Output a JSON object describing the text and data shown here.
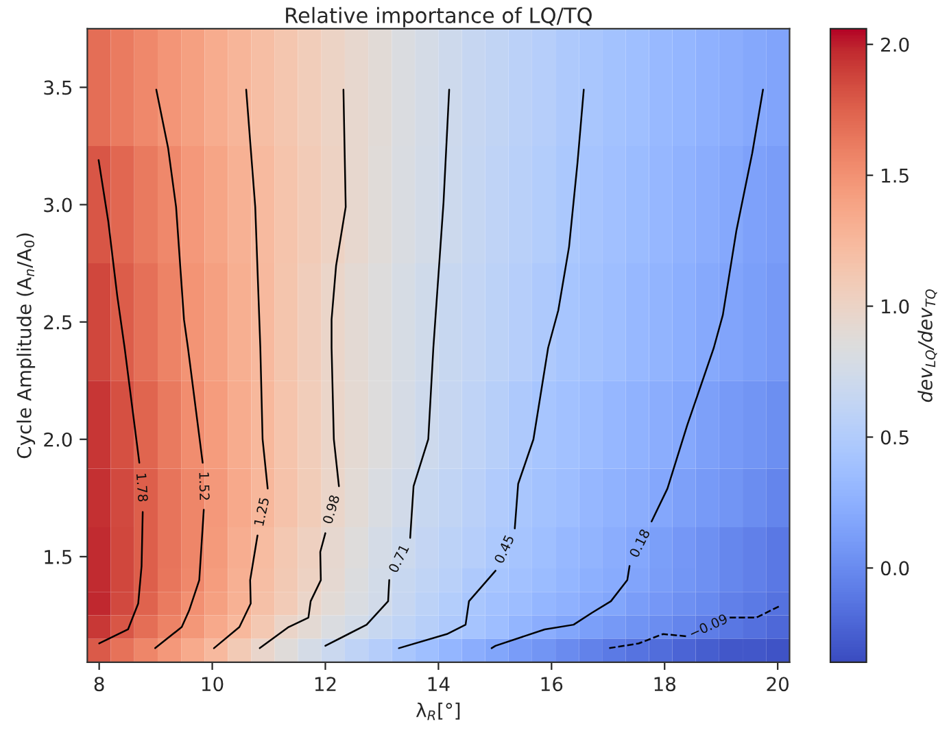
{
  "chart_data": {
    "type": "heatmap",
    "title": "Relative importance of LQ/TQ",
    "xlabel": "λ$_{R}$[°]",
    "ylabel": "Cycle Amplitude (A$_{n}$/A$_{0}$)",
    "clabel": "dev$_{LQ}$/dev$_{TQ}$",
    "x": [
      8.0,
      8.41,
      8.83,
      9.24,
      9.66,
      10.07,
      10.48,
      10.9,
      11.31,
      11.72,
      12.14,
      12.55,
      12.97,
      13.38,
      13.79,
      14.21,
      14.62,
      15.03,
      15.45,
      15.86,
      16.28,
      16.69,
      17.1,
      17.52,
      17.93,
      18.34,
      18.76,
      19.17,
      19.59,
      20.0
    ],
    "y": [
      3.5,
      3.0,
      2.5,
      2.0,
      1.75,
      1.5,
      1.4,
      1.3,
      1.2,
      1.1
    ],
    "cells": [
      [
        1.69,
        1.62,
        1.55,
        1.48,
        1.41,
        1.34,
        1.27,
        1.2,
        1.14,
        1.07,
        1.01,
        0.95,
        0.89,
        0.83,
        0.77,
        0.71,
        0.66,
        0.62,
        0.57,
        0.53,
        0.48,
        0.44,
        0.4,
        0.37,
        0.33,
        0.3,
        0.26,
        0.23,
        0.19,
        0.16
      ],
      [
        1.8,
        1.72,
        1.63,
        1.55,
        1.46,
        1.38,
        1.3,
        1.23,
        1.16,
        1.09,
        1.02,
        0.95,
        0.88,
        0.82,
        0.76,
        0.7,
        0.65,
        0.6,
        0.55,
        0.51,
        0.46,
        0.42,
        0.38,
        0.34,
        0.31,
        0.27,
        0.23,
        0.19,
        0.15,
        0.12
      ],
      [
        1.87,
        1.77,
        1.68,
        1.58,
        1.49,
        1.41,
        1.32,
        1.24,
        1.15,
        1.06,
        0.98,
        0.91,
        0.85,
        0.79,
        0.73,
        0.67,
        0.63,
        0.58,
        0.53,
        0.48,
        0.43,
        0.4,
        0.36,
        0.32,
        0.28,
        0.24,
        0.2,
        0.16,
        0.13,
        0.09
      ],
      [
        1.93,
        1.83,
        1.73,
        1.63,
        1.53,
        1.44,
        1.34,
        1.25,
        1.16,
        1.07,
        0.98,
        0.92,
        0.85,
        0.78,
        0.71,
        0.66,
        0.6,
        0.54,
        0.48,
        0.43,
        0.39,
        0.35,
        0.31,
        0.27,
        0.23,
        0.19,
        0.14,
        0.1,
        0.06,
        0.02
      ],
      [
        1.95,
        1.86,
        1.76,
        1.66,
        1.56,
        1.46,
        1.36,
        1.26,
        1.17,
        1.08,
        0.98,
        0.9,
        0.82,
        0.74,
        0.67,
        0.62,
        0.56,
        0.5,
        0.44,
        0.4,
        0.36,
        0.31,
        0.27,
        0.23,
        0.18,
        0.14,
        0.1,
        0.06,
        0.01,
        -0.03
      ],
      [
        1.97,
        1.87,
        1.76,
        1.66,
        1.56,
        1.45,
        1.33,
        1.22,
        1.12,
        1.03,
        0.94,
        0.86,
        0.77,
        0.7,
        0.64,
        0.58,
        0.53,
        0.47,
        0.42,
        0.37,
        0.32,
        0.28,
        0.23,
        0.18,
        0.13,
        0.08,
        0.03,
        -0.02,
        -0.06,
        -0.11
      ],
      [
        1.97,
        1.87,
        1.76,
        1.65,
        1.55,
        1.43,
        1.31,
        1.2,
        1.11,
        1.02,
        0.93,
        0.84,
        0.75,
        0.67,
        0.61,
        0.55,
        0.48,
        0.43,
        0.39,
        0.34,
        0.3,
        0.25,
        0.21,
        0.16,
        0.12,
        0.07,
        0.03,
        -0.02,
        -0.06,
        -0.11
      ],
      [
        1.98,
        1.86,
        1.74,
        1.62,
        1.51,
        1.41,
        1.3,
        1.19,
        1.09,
        0.98,
        0.9,
        0.82,
        0.74,
        0.66,
        0.58,
        0.51,
        0.44,
        0.39,
        0.35,
        0.3,
        0.26,
        0.21,
        0.17,
        0.12,
        0.08,
        0.03,
        -0.01,
        -0.06,
        -0.1,
        -0.15
      ],
      [
        1.92,
        1.8,
        1.69,
        1.58,
        1.47,
        1.36,
        1.25,
        1.12,
        0.99,
        0.91,
        0.83,
        0.75,
        0.67,
        0.61,
        0.54,
        0.48,
        0.42,
        0.36,
        0.29,
        0.23,
        0.17,
        0.13,
        0.09,
        0.05,
        0.01,
        -0.03,
        -0.08,
        -0.12,
        -0.16,
        -0.2
      ],
      [
        1.78,
        1.67,
        1.56,
        1.46,
        1.35,
        1.24,
        1.1,
        0.97,
        0.87,
        0.77,
        0.68,
        0.6,
        0.52,
        0.44,
        0.37,
        0.3,
        0.23,
        0.17,
        0.11,
        0.06,
        0.0,
        -0.05,
        -0.1,
        -0.14,
        -0.18,
        -0.22,
        -0.26,
        -0.3,
        -0.3,
        -0.32
      ]
    ],
    "clim": [
      -0.36,
      2.06
    ],
    "cticks": [
      {
        "value": 0.0,
        "label": "0.0"
      },
      {
        "value": 0.5,
        "label": "0.5"
      },
      {
        "value": 1.0,
        "label": "1.0"
      },
      {
        "value": 1.5,
        "label": "1.5"
      },
      {
        "value": 2.0,
        "label": "2.0"
      }
    ],
    "xlim": [
      7.79,
      20.21
    ],
    "ylim": [
      1.05,
      3.75
    ],
    "xticks": [
      8,
      10,
      12,
      14,
      16,
      18,
      20
    ],
    "yticks": [
      {
        "value": 1.5,
        "label": "1.5"
      },
      {
        "value": 2.0,
        "label": "2.0"
      },
      {
        "value": 2.5,
        "label": "2.5"
      },
      {
        "value": 3.0,
        "label": "3.0"
      },
      {
        "value": 3.5,
        "label": "3.5"
      }
    ],
    "grid": false,
    "series": [
      {
        "type": "line",
        "color": "#000000",
        "line_style": "solid",
        "x": [
          7.99,
          8.16,
          8.32,
          8.45,
          8.71,
          null,
          8.77,
          8.75,
          8.69,
          8.51,
          8.0
        ],
        "values": [
          3.19,
          2.93,
          2.61,
          2.39,
          1.9,
          null,
          1.69,
          1.46,
          1.3,
          1.19,
          1.13
        ]
      },
      {
        "type": "line",
        "color": "#000000",
        "line_style": "solid",
        "x": [
          9.01,
          9.22,
          9.36,
          9.5,
          9.57,
          9.83,
          null,
          9.85,
          9.77,
          9.59,
          9.46,
          8.99
        ],
        "values": [
          3.49,
          3.24,
          2.99,
          2.51,
          2.39,
          1.9,
          null,
          1.7,
          1.4,
          1.27,
          1.2,
          1.11
        ]
      },
      {
        "type": "line",
        "color": "#000000",
        "line_style": "solid",
        "x": [
          10.6,
          10.76,
          10.85,
          10.89,
          10.98,
          null,
          10.8,
          10.67,
          10.68,
          10.48,
          10.03
        ],
        "values": [
          3.49,
          2.99,
          2.39,
          2.0,
          1.79,
          null,
          1.59,
          1.4,
          1.3,
          1.2,
          1.11
        ]
      },
      {
        "type": "line",
        "color": "#000000",
        "line_style": "solid",
        "x": [
          12.32,
          12.36,
          12.19,
          12.11,
          12.11,
          12.15,
          12.24,
          null,
          12.0,
          11.91,
          11.92,
          11.74,
          11.7,
          11.35,
          10.84
        ],
        "values": [
          3.49,
          2.99,
          2.74,
          2.51,
          2.39,
          2.0,
          1.8,
          null,
          1.6,
          1.52,
          1.4,
          1.31,
          1.24,
          1.2,
          1.11
        ]
      },
      {
        "type": "line",
        "color": "#000000",
        "line_style": "solid",
        "x": [
          14.19,
          14.09,
          13.91,
          13.82,
          13.56,
          13.5,
          null,
          13.13,
          13.11,
          12.73,
          12.0
        ],
        "values": [
          3.49,
          3.01,
          2.39,
          2.0,
          1.8,
          1.58,
          null,
          1.4,
          1.31,
          1.21,
          1.12
        ]
      },
      {
        "type": "line",
        "color": "#000000",
        "line_style": "solid",
        "x": [
          16.57,
          16.46,
          16.31,
          16.12,
          15.94,
          15.68,
          15.41,
          15.35,
          null,
          15.01,
          14.54,
          14.48,
          14.15,
          13.3
        ],
        "values": [
          3.49,
          3.18,
          2.82,
          2.55,
          2.39,
          2.0,
          1.81,
          1.62,
          null,
          1.44,
          1.31,
          1.21,
          1.17,
          1.11
        ]
      },
      {
        "type": "line",
        "color": "#000000",
        "line_style": "solid",
        "x": [
          19.74,
          19.55,
          19.27,
          19.03,
          18.87,
          18.4,
          18.05,
          17.77,
          null,
          17.38,
          17.34,
          17.05,
          16.71,
          16.39,
          15.88,
          15.01,
          14.94
        ],
        "values": [
          3.49,
          3.22,
          2.89,
          2.53,
          2.39,
          2.06,
          1.79,
          1.65,
          null,
          1.46,
          1.4,
          1.31,
          1.26,
          1.21,
          1.19,
          1.12,
          1.11
        ]
      },
      {
        "type": "line",
        "color": "#000000",
        "line_style": "dashed",
        "x": [
          17.02,
          17.54,
          17.97,
          18.41,
          null,
          19.15,
          19.62,
          20.04
        ],
        "values": [
          1.11,
          1.13,
          1.17,
          1.16,
          null,
          1.24,
          1.24,
          1.29
        ]
      }
    ],
    "annotations": [
      "1.78",
      "1.52",
      "1.25",
      "0.98",
      "0.71",
      "0.45",
      "0.18",
      "−0.09"
    ]
  }
}
